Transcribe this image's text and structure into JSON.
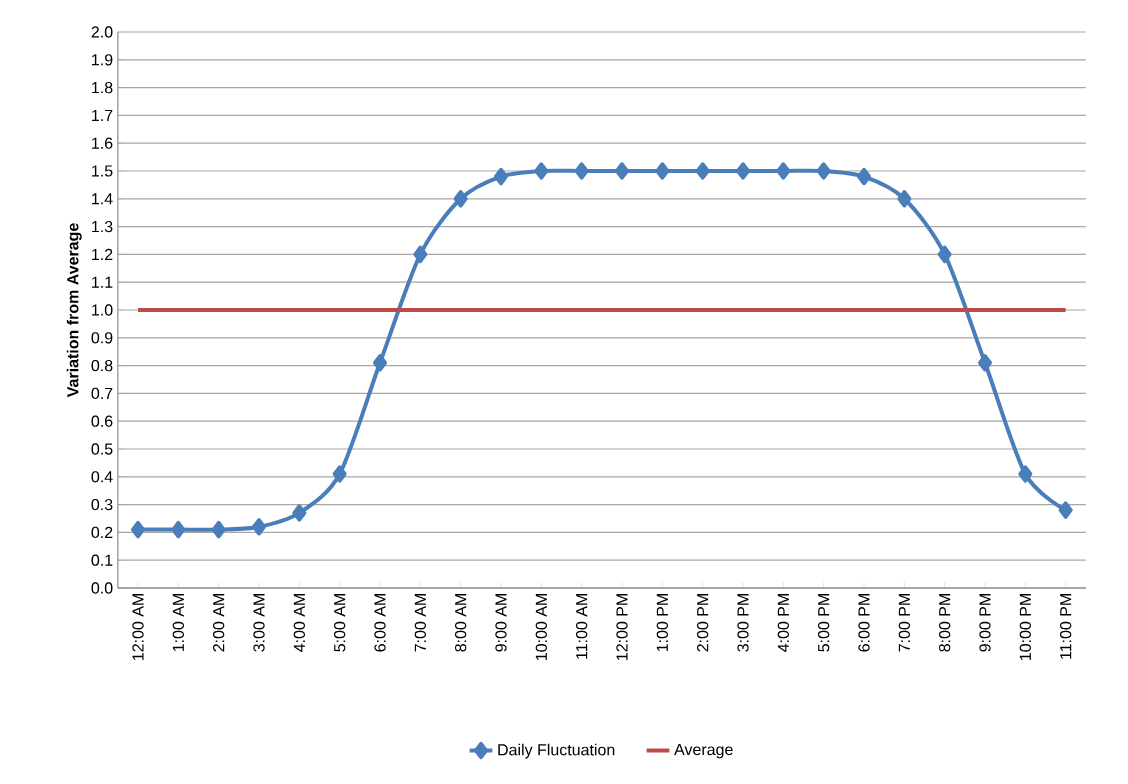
{
  "chart_data": {
    "type": "line",
    "ylabel": "Variation from Average",
    "categories": [
      "12:00 AM",
      "1:00 AM",
      "2:00 AM",
      "3:00 AM",
      "4:00 AM",
      "5:00 AM",
      "6:00 AM",
      "7:00 AM",
      "8:00 AM",
      "9:00 AM",
      "10:00 AM",
      "11:00 AM",
      "12:00 PM",
      "1:00 PM",
      "2:00 PM",
      "3:00 PM",
      "4:00 PM",
      "5:00 PM",
      "6:00 PM",
      "7:00 PM",
      "8:00 PM",
      "9:00 PM",
      "10:00 PM",
      "11:00 PM"
    ],
    "series": [
      {
        "name": "Daily Fluctuation",
        "color": "#4a7ebb",
        "marker": "diamond",
        "values": [
          0.21,
          0.21,
          0.21,
          0.22,
          0.27,
          0.41,
          0.81,
          1.2,
          1.4,
          1.48,
          1.5,
          1.5,
          1.5,
          1.5,
          1.5,
          1.5,
          1.5,
          1.5,
          1.48,
          1.4,
          1.2,
          0.81,
          0.41,
          0.28
        ]
      },
      {
        "name": "Average",
        "color": "#be4b48",
        "marker": "none",
        "values": [
          1,
          1,
          1,
          1,
          1,
          1,
          1,
          1,
          1,
          1,
          1,
          1,
          1,
          1,
          1,
          1,
          1,
          1,
          1,
          1,
          1,
          1,
          1,
          1
        ]
      }
    ],
    "ylim": [
      0,
      2
    ],
    "yticks": [
      {
        "value": 0,
        "label": "0.0"
      },
      0.1,
      0.2,
      0.3,
      0.4,
      0.5,
      0.6,
      0.7,
      0.8,
      0.9,
      {
        "value": 1,
        "label": "1.0"
      },
      1.1,
      1.2,
      1.3,
      1.4,
      1.5,
      1.6,
      1.7,
      1.8,
      1.9,
      {
        "value": 2,
        "label": "2.0"
      }
    ],
    "grid": "y",
    "legend": "bottom"
  }
}
